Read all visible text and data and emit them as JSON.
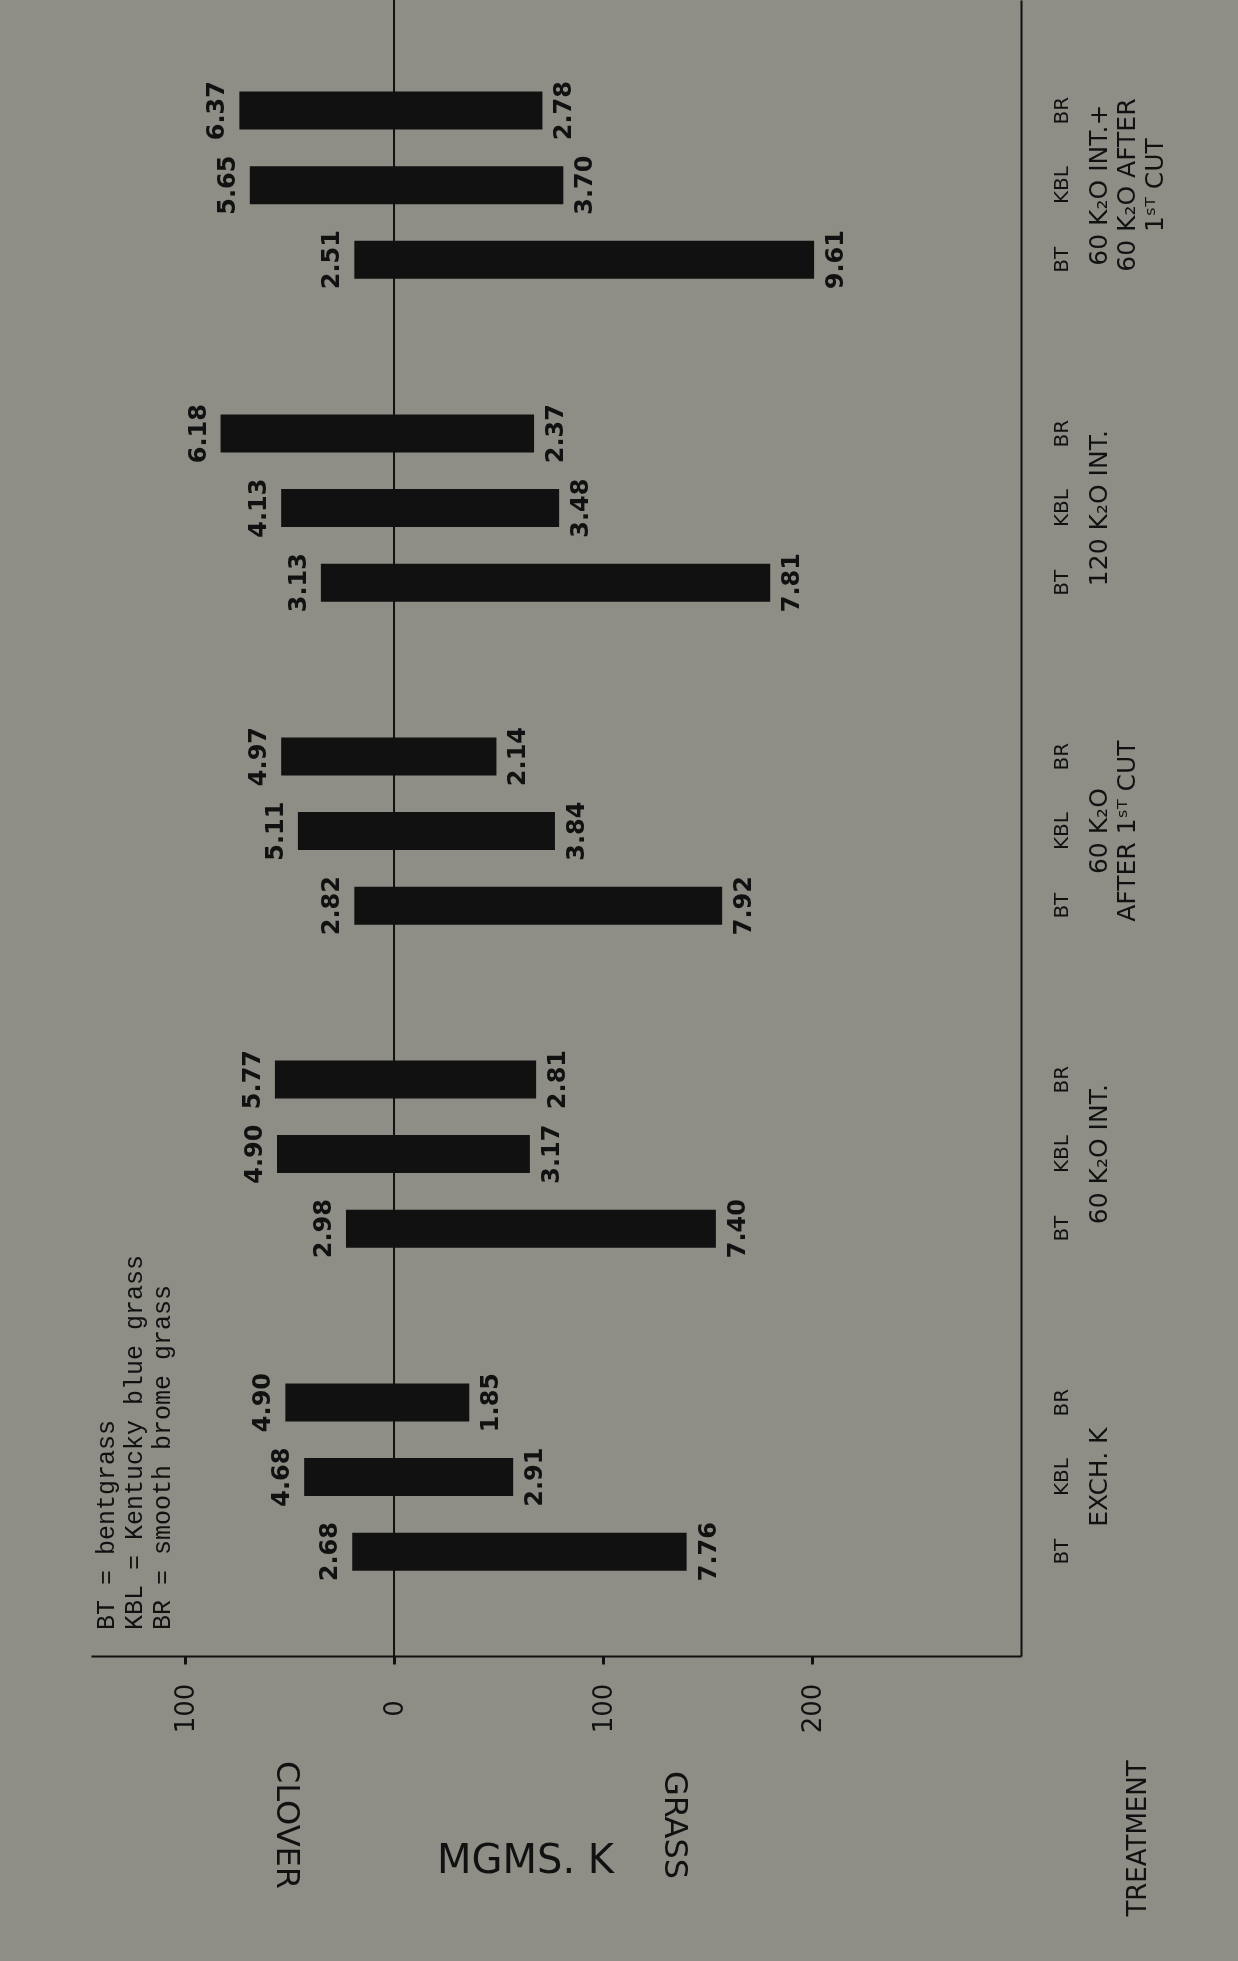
{
  "chart_data": {
    "type": "bar",
    "stacked": true,
    "orientation": "horizontal",
    "xlabel": "MGMS. K",
    "ylabel": "TREATMENT",
    "categories": [
      "BR",
      "KBL",
      "BT",
      "BR",
      "KBL",
      "BT",
      "BR",
      "KBL",
      "BT",
      "BR",
      "KBL",
      "BT",
      "BR",
      "KBL",
      "BT"
    ],
    "series": [
      {
        "color": "#111111",
        "values": [
          -74,
          -69,
          -19,
          -83,
          -54,
          -35,
          -54,
          -46,
          -19,
          -57,
          -56,
          -23,
          -52,
          -43,
          -20
        ]
      },
      {
        "color": "#111111",
        "values": [
          71,
          81,
          201,
          67,
          79,
          180,
          49,
          77,
          157,
          68,
          65,
          154,
          36,
          57,
          140
        ]
      }
    ],
    "xlim": [
      -145,
      300
    ],
    "xticks": [
      {
        "value": -100,
        "label": "100"
      },
      0,
      100,
      200
    ],
    "ref_lines": [
      {
        "axis": "x",
        "value": 0
      }
    ],
    "grid": false,
    "annotations": [
      "BT  = bentgrass",
      "KBL = Kentucky blue grass",
      "BR  = smooth brome grass",
      "60 K₂O INT.+\n60 K₂O AFTER\n1ˢᵀ CUT",
      "120 K₂O INT.",
      "60 K₂O\nAFTER 1ˢᵀ CUT",
      "60 K₂O INT.",
      "EXCH. K",
      "CLOVER",
      "GRASS",
      "6.37",
      "2.78",
      "5.65",
      "3.70",
      "2.51",
      "9.61",
      "6.18",
      "2.37",
      "4.13",
      "3.48",
      "3.13",
      "7.81",
      "4.97",
      "2.14",
      "5.11",
      "3.84",
      "2.82",
      "7.92",
      "5.77",
      "2.81",
      "4.90",
      "3.17",
      "2.98",
      "7.40",
      "4.90",
      "1.85",
      "4.68",
      "2.91",
      "2.68",
      "7.76"
    ]
  }
}
